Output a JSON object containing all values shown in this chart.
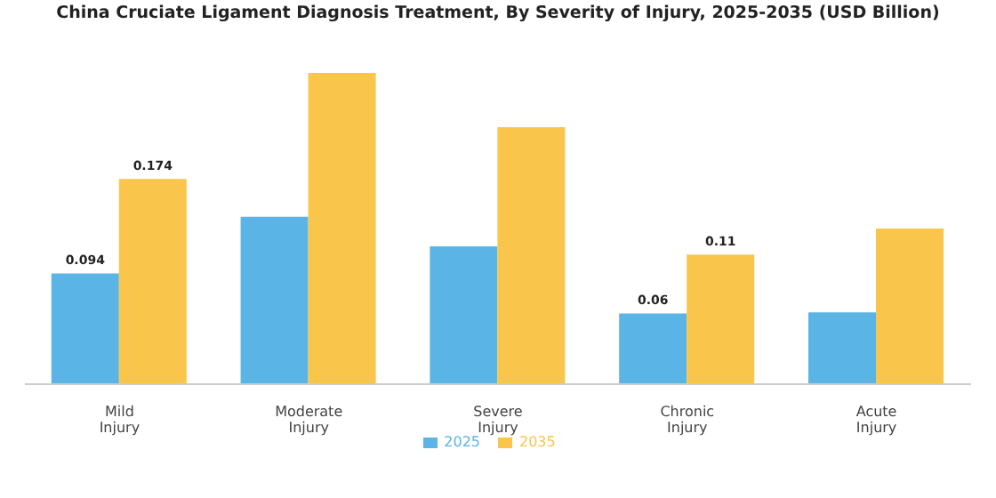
{
  "chart_data": {
    "type": "bar",
    "title": "China Cruciate Ligament Diagnosis Treatment, By Severity of Injury, 2025-2035 (USD Billion)",
    "categories": [
      "Mild Injury",
      "Moderate Injury",
      "Severe Injury",
      "Chronic Injury",
      "Acute Injury"
    ],
    "series": [
      {
        "name": "2025",
        "color": "#5ab4e5",
        "values": [
          0.094,
          0.142,
          0.117,
          0.06,
          0.061
        ],
        "value_labels": [
          "0.094",
          null,
          null,
          "0.06",
          null
        ]
      },
      {
        "name": "2035",
        "color": "#f9c54a",
        "values": [
          0.174,
          0.264,
          0.218,
          0.11,
          0.132
        ],
        "value_labels": [
          "0.174",
          null,
          null,
          "0.11",
          null
        ]
      }
    ],
    "legend": "bottom",
    "grid": false
  }
}
